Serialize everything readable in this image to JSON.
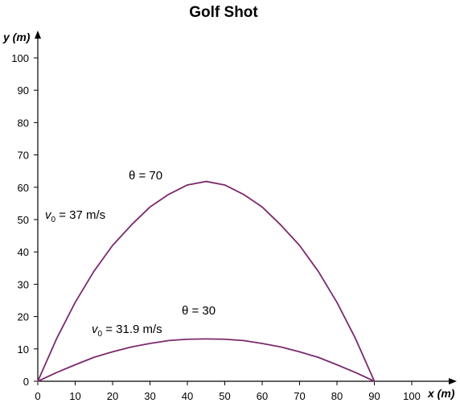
{
  "chart_data": {
    "type": "line",
    "title": "Golf Shot",
    "xlabel": "x (m)",
    "ylabel": "y (m)",
    "xlim": [
      0,
      100
    ],
    "ylim": [
      0,
      100
    ],
    "xticks": [
      0,
      10,
      20,
      30,
      40,
      50,
      60,
      70,
      80,
      90,
      100
    ],
    "yticks": [
      0,
      10,
      20,
      30,
      40,
      50,
      60,
      70,
      80,
      90,
      100
    ],
    "grid": false,
    "line_color": "#7b2a6e",
    "series": [
      {
        "angle_label": "θ = 70",
        "speed_label": "v0 = 37 m/s",
        "x": [
          0,
          5,
          10,
          15,
          20,
          25,
          30,
          35,
          40,
          45,
          50,
          55,
          60,
          65,
          70,
          75,
          80,
          85,
          90
        ],
        "y": [
          0,
          13.1,
          24.4,
          34.0,
          42.0,
          48.3,
          53.9,
          57.8,
          60.7,
          61.8,
          60.7,
          57.8,
          53.9,
          48.3,
          42.0,
          34.0,
          24.4,
          13.1,
          0
        ]
      },
      {
        "angle_label": "θ = 30",
        "speed_label": "v0 = 31.9 m/s",
        "x": [
          0,
          5,
          10,
          15,
          20,
          25,
          30,
          35,
          40,
          45,
          50,
          55,
          60,
          65,
          70,
          75,
          80,
          85,
          90
        ],
        "y": [
          0,
          2.7,
          5.1,
          7.4,
          9.1,
          10.6,
          11.7,
          12.6,
          13.0,
          13.1,
          13.0,
          12.6,
          11.7,
          10.6,
          9.1,
          7.4,
          5.1,
          2.7,
          0
        ]
      }
    ]
  }
}
